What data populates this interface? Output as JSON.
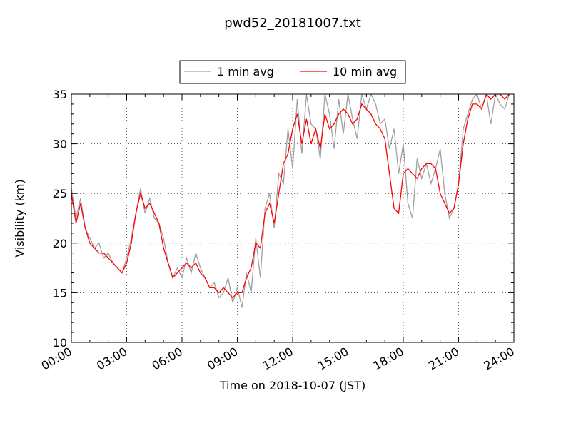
{
  "chart_data": {
    "type": "line",
    "title": "pwd52_20181007.txt",
    "xlabel": "Time on 2018-10-07 (JST)",
    "ylabel": "Visibility (km)",
    "xlim": [
      "00:00",
      "24:00"
    ],
    "ylim": [
      10,
      35
    ],
    "x_ticks": [
      "00:00",
      "03:00",
      "06:00",
      "09:00",
      "12:00",
      "15:00",
      "18:00",
      "21:00",
      "24:00"
    ],
    "y_ticks": [
      10,
      15,
      20,
      25,
      30,
      35
    ],
    "grid": true,
    "legend": {
      "placement": "top-center",
      "entries": [
        "1 min avg",
        "10 min avg"
      ]
    },
    "x_unit": "hours",
    "series": [
      {
        "name": "1 min avg",
        "color": "#a0a0a0",
        "x": [
          0.0,
          0.25,
          0.5,
          0.75,
          1.0,
          1.25,
          1.5,
          1.75,
          2.0,
          2.25,
          2.5,
          2.75,
          3.0,
          3.25,
          3.5,
          3.75,
          4.0,
          4.25,
          4.5,
          4.75,
          5.0,
          5.25,
          5.5,
          5.75,
          6.0,
          6.25,
          6.5,
          6.75,
          7.0,
          7.25,
          7.5,
          7.75,
          8.0,
          8.25,
          8.5,
          8.75,
          9.0,
          9.25,
          9.5,
          9.75,
          10.0,
          10.25,
          10.5,
          10.75,
          11.0,
          11.25,
          11.5,
          11.75,
          12.0,
          12.25,
          12.5,
          12.75,
          13.0,
          13.25,
          13.5,
          13.75,
          14.0,
          14.25,
          14.5,
          14.75,
          15.0,
          15.25,
          15.5,
          15.75,
          16.0,
          16.25,
          16.5,
          16.75,
          17.0,
          17.25,
          17.5,
          17.75,
          18.0,
          18.25,
          18.5,
          18.75,
          19.0,
          19.25,
          19.5,
          19.75,
          20.0,
          20.25,
          20.5,
          20.75,
          21.0,
          21.25,
          21.5,
          21.75,
          22.0,
          22.25,
          22.5,
          22.75,
          23.0,
          23.25,
          23.5,
          23.75
        ],
        "y": [
          25.5,
          22.5,
          24.5,
          21.5,
          20.5,
          19.5,
          20.0,
          18.5,
          19.0,
          18.0,
          17.5,
          17.0,
          18.5,
          20.5,
          23.0,
          25.5,
          23.0,
          24.5,
          22.5,
          22.0,
          20.5,
          18.0,
          16.5,
          17.5,
          16.5,
          18.5,
          17.0,
          19.0,
          17.5,
          16.5,
          15.5,
          16.0,
          14.5,
          15.0,
          16.5,
          14.0,
          15.5,
          13.5,
          17.0,
          15.0,
          20.5,
          16.5,
          23.5,
          25.0,
          21.5,
          27.0,
          26.0,
          31.5,
          27.5,
          34.5,
          29.0,
          35.0,
          32.0,
          31.5,
          28.5,
          35.0,
          33.0,
          29.5,
          34.5,
          31.0,
          35.0,
          32.5,
          30.5,
          35.0,
          33.5,
          35.0,
          34.0,
          32.0,
          32.5,
          29.5,
          31.5,
          27.0,
          30.0,
          24.0,
          22.5,
          28.5,
          26.5,
          28.0,
          26.0,
          27.5,
          29.5,
          25.0,
          22.5,
          23.5,
          26.0,
          31.5,
          33.0,
          34.5,
          35.0,
          33.5,
          35.0,
          32.0,
          35.0,
          34.0,
          33.5,
          35.0
        ]
      },
      {
        "name": "10 min avg",
        "color": "#ff0000",
        "x": [
          0.0,
          0.25,
          0.5,
          0.75,
          1.0,
          1.25,
          1.5,
          1.75,
          2.0,
          2.25,
          2.5,
          2.75,
          3.0,
          3.25,
          3.5,
          3.75,
          4.0,
          4.25,
          4.5,
          4.75,
          5.0,
          5.25,
          5.5,
          5.75,
          6.0,
          6.25,
          6.5,
          6.75,
          7.0,
          7.25,
          7.5,
          7.75,
          8.0,
          8.25,
          8.5,
          8.75,
          9.0,
          9.25,
          9.5,
          9.75,
          10.0,
          10.25,
          10.5,
          10.75,
          11.0,
          11.25,
          11.5,
          11.75,
          12.0,
          12.25,
          12.5,
          12.75,
          13.0,
          13.25,
          13.5,
          13.75,
          14.0,
          14.25,
          14.5,
          14.75,
          15.0,
          15.25,
          15.5,
          15.75,
          16.0,
          16.25,
          16.5,
          16.75,
          17.0,
          17.25,
          17.5,
          17.75,
          18.0,
          18.25,
          18.5,
          18.75,
          19.0,
          19.25,
          19.5,
          19.75,
          20.0,
          20.25,
          20.5,
          20.75,
          21.0,
          21.25,
          21.5,
          21.75,
          22.0,
          22.25,
          22.5,
          22.75,
          23.0,
          23.25,
          23.5,
          23.75
        ],
        "y": [
          25.0,
          22.0,
          24.0,
          21.5,
          20.0,
          19.5,
          19.0,
          19.0,
          18.5,
          18.0,
          17.5,
          17.0,
          18.0,
          20.0,
          23.0,
          25.0,
          23.5,
          24.0,
          23.0,
          22.0,
          19.5,
          18.0,
          16.5,
          17.0,
          17.5,
          18.0,
          17.5,
          18.0,
          17.0,
          16.5,
          15.5,
          15.5,
          15.0,
          15.5,
          15.0,
          14.5,
          15.0,
          15.0,
          16.5,
          17.5,
          20.0,
          19.5,
          23.0,
          24.0,
          22.0,
          25.0,
          28.0,
          29.0,
          31.5,
          33.0,
          30.0,
          32.5,
          30.0,
          31.5,
          29.5,
          33.0,
          31.5,
          32.0,
          33.0,
          33.5,
          33.0,
          32.0,
          32.5,
          34.0,
          33.5,
          33.0,
          32.0,
          31.5,
          30.5,
          27.0,
          23.5,
          23.0,
          27.0,
          27.5,
          27.0,
          26.5,
          27.5,
          28.0,
          28.0,
          27.5,
          25.0,
          24.0,
          23.0,
          23.5,
          26.0,
          30.0,
          32.5,
          34.0,
          34.0,
          33.5,
          35.0,
          34.5,
          35.0,
          35.0,
          34.5,
          35.0
        ]
      }
    ]
  }
}
